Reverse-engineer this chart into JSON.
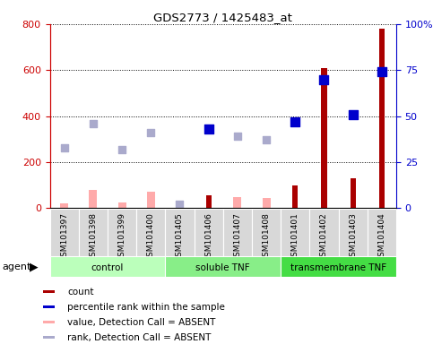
{
  "title": "GDS2773 / 1425483_at",
  "samples": [
    "GSM101397",
    "GSM101398",
    "GSM101399",
    "GSM101400",
    "GSM101405",
    "GSM101406",
    "GSM101407",
    "GSM101408",
    "GSM101401",
    "GSM101402",
    "GSM101403",
    "GSM101404"
  ],
  "groups": [
    {
      "label": "control",
      "start": 0,
      "end": 4,
      "color": "#bbffbb"
    },
    {
      "label": "soluble TNF",
      "start": 4,
      "end": 8,
      "color": "#88ee88"
    },
    {
      "label": "transmembrane TNF",
      "start": 8,
      "end": 12,
      "color": "#44dd44"
    }
  ],
  "count_values": [
    null,
    null,
    null,
    null,
    null,
    55,
    null,
    null,
    100,
    610,
    130,
    780
  ],
  "rank_percent": [
    null,
    null,
    null,
    null,
    null,
    43,
    null,
    null,
    47,
    70,
    51,
    74
  ],
  "absent_value": [
    22,
    80,
    25,
    70,
    15,
    null,
    47,
    43,
    null,
    null,
    null,
    null
  ],
  "absent_rank_percent": [
    33,
    46,
    32,
    41,
    2,
    null,
    39,
    37,
    null,
    null,
    null,
    null
  ],
  "ylim_left": [
    0,
    800
  ],
  "ylim_right": [
    0,
    100
  ],
  "yticks_left": [
    0,
    200,
    400,
    600,
    800
  ],
  "yticks_right": [
    0,
    25,
    50,
    75,
    100
  ],
  "ytick_labels_left": [
    "0",
    "200",
    "400",
    "600",
    "800"
  ],
  "ytick_labels_right": [
    "0",
    "25",
    "50",
    "75",
    "100%"
  ],
  "left_axis_color": "#cc0000",
  "right_axis_color": "#0000cc",
  "bar_color_present": "#aa0000",
  "bar_color_absent": "#ffaaaa",
  "rank_color_present": "#0000cc",
  "rank_color_absent": "#aaaacc",
  "bg_color": "#ffffff",
  "plot_bg": "#ffffff",
  "grid_color": "#000000",
  "legend_items": [
    {
      "color": "#aa0000",
      "label": "count"
    },
    {
      "color": "#0000cc",
      "label": "percentile rank within the sample"
    },
    {
      "color": "#ffaaaa",
      "label": "value, Detection Call = ABSENT"
    },
    {
      "color": "#aaaacc",
      "label": "rank, Detection Call = ABSENT"
    }
  ]
}
